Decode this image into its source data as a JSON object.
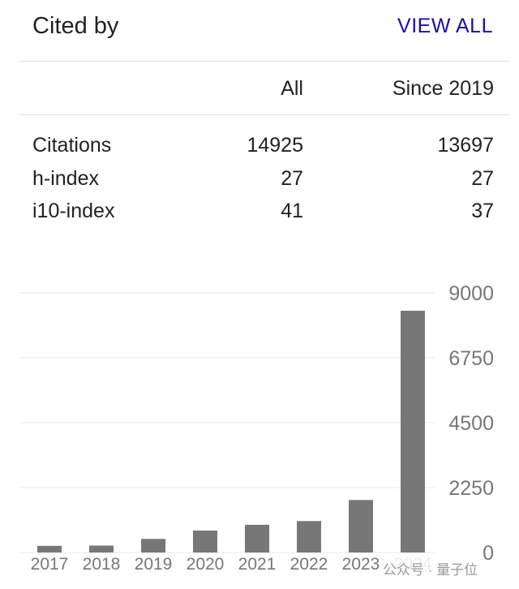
{
  "header": {
    "title": "Cited by",
    "view_all": "VIEW ALL"
  },
  "table": {
    "columns": [
      "All",
      "Since 2019"
    ],
    "rows": [
      {
        "label": "Citations",
        "all": "14925",
        "since": "13697"
      },
      {
        "label": "h-index",
        "all": "27",
        "since": "27"
      },
      {
        "label": "i10-index",
        "all": "41",
        "since": "37"
      }
    ]
  },
  "watermark": "公众号 · 量子位",
  "colors": {
    "bar": "#777777",
    "link": "#1a0dab",
    "grid": "#e8e8e8"
  },
  "chart_data": {
    "type": "bar",
    "categories": [
      "2017",
      "2018",
      "2019",
      "2020",
      "2021",
      "2022",
      "2023",
      "2024"
    ],
    "values": [
      230,
      240,
      470,
      760,
      960,
      1090,
      1820,
      8380
    ],
    "ylim": [
      0,
      9000
    ],
    "yticks": [
      "0",
      "2250",
      "4500",
      "6750",
      "9000"
    ],
    "ytick_values": [
      0,
      2250,
      4500,
      6750,
      9000
    ],
    "grid": true,
    "title": "",
    "xlabel": "",
    "ylabel": ""
  }
}
